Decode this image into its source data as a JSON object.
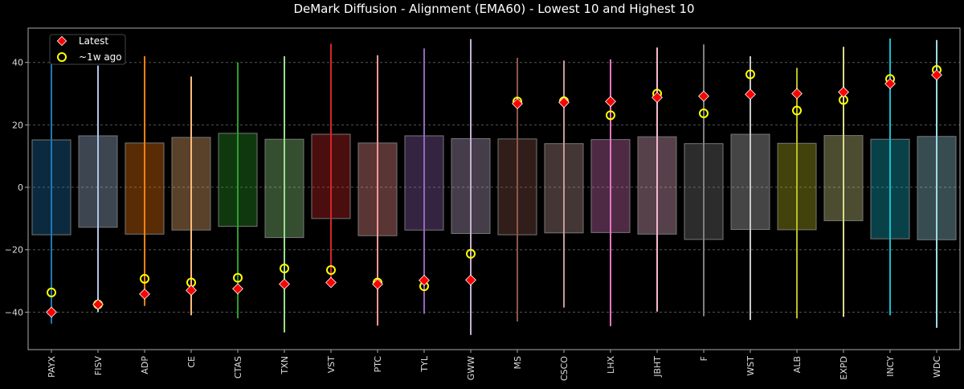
{
  "chart_data": {
    "type": "box",
    "title": "DeMark Diffusion - Alignment (EMA60) - Lowest 10 and Highest 10",
    "xlabel": "",
    "ylabel": "",
    "ylim": [
      -52,
      51
    ],
    "yticks": [
      -40,
      -20,
      0,
      20,
      40
    ],
    "grid": "horizontal dashed",
    "legend_position": "top-left",
    "legend": [
      {
        "label": "Latest",
        "marker": "diamond",
        "color": "#ff0000"
      },
      {
        "label": "~1w ago",
        "marker": "circle",
        "color": "#ffff00"
      }
    ],
    "categories": [
      "PAYX",
      "FISV",
      "ADP",
      "CE",
      "CTAS",
      "TXN",
      "VST",
      "PTC",
      "TYL",
      "GWW",
      "MS",
      "CSCO",
      "LHX",
      "JBHT",
      "F",
      "WST",
      "ALB",
      "EXPD",
      "INCY",
      "WDC"
    ],
    "colors": [
      "#1f77b4",
      "#aec7e8",
      "#ff7f0e",
      "#ffbb78",
      "#2ca02c",
      "#98df8a",
      "#d62728",
      "#ff9896",
      "#9467bd",
      "#c5b0d5",
      "#8c564b",
      "#c49c94",
      "#e377c2",
      "#f7b6d2",
      "#7f7f7f",
      "#c7c7c7",
      "#bcbd22",
      "#dbdb8d",
      "#17becf",
      "#9edae5"
    ],
    "min": [
      -43.7,
      -40,
      -38,
      -41,
      -42,
      -46.5,
      -30.5,
      -44.3,
      -40.5,
      -47.3,
      -43,
      -38.5,
      -44.5,
      -39.8,
      -41.3,
      -42.5,
      -42,
      -41.5,
      -41,
      -45
    ],
    "q1": [
      -15.2,
      -12.8,
      -15,
      -13.7,
      -12.5,
      -16.1,
      -10,
      -15.5,
      -13.7,
      -14.8,
      -15.2,
      -14.6,
      -14.5,
      -15,
      -16.7,
      -13.5,
      -13.6,
      -10.7,
      -16.5,
      -16.8
    ],
    "q3": [
      15.2,
      16.5,
      14.2,
      16,
      17.3,
      15.4,
      17,
      14.2,
      16.5,
      15.6,
      15.5,
      14,
      15.3,
      16.2,
      14,
      17,
      14.1,
      16.6,
      15.4,
      16.3
    ],
    "max": [
      44.2,
      39,
      42,
      35.5,
      40,
      42,
      46,
      42.3,
      44.5,
      47.5,
      41.5,
      40.6,
      41,
      44.8,
      45.8,
      42,
      38.3,
      45,
      47.7,
      47.2
    ],
    "latest": [
      -40,
      -37.5,
      -34.2,
      -33,
      -32.5,
      -31,
      -30.5,
      -31,
      -29.8,
      -29.7,
      26.8,
      27.2,
      27.5,
      28.8,
      29.2,
      29.8,
      30,
      30.5,
      33.2,
      36
    ],
    "week_ago": [
      -33.7,
      -37.5,
      -29.3,
      -30.5,
      -29,
      -26,
      -26.5,
      -30.5,
      -31.7,
      -21.3,
      27.5,
      27.6,
      23.1,
      30,
      23.7,
      36.2,
      24.6,
      28,
      34.7,
      37.6
    ]
  }
}
